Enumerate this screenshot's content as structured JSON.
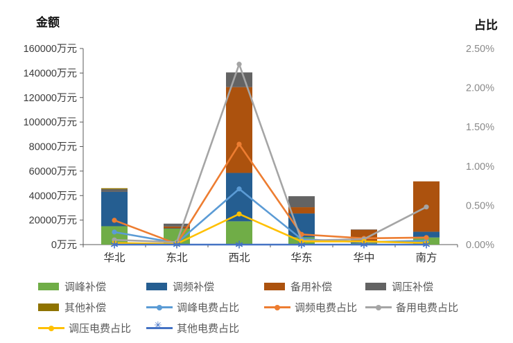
{
  "chart_data": {
    "type": "combo-stacked-bar-line",
    "categories": [
      "华北",
      "东北",
      "西北",
      "华东",
      "华中",
      "南方"
    ],
    "left_axis": {
      "title": "金额",
      "min": 0,
      "max": 160000,
      "step": 20000,
      "suffix": "万元",
      "ticks": [
        "0万元",
        "20000万元",
        "40000万元",
        "60000万元",
        "80000万元",
        "100000万元",
        "120000万元",
        "140000万元",
        "160000万元"
      ]
    },
    "right_axis": {
      "title": "占比",
      "min": 0,
      "max": 2.5,
      "step": 0.5,
      "ticks": [
        "0.00%",
        "0.50%",
        "1.00%",
        "1.50%",
        "2.00%",
        "2.50%"
      ]
    },
    "bar_series": [
      {
        "name": "调峰补偿",
        "color": "#70AD47",
        "values": [
          15000,
          13000,
          19000,
          6000,
          1100,
          5800
        ]
      },
      {
        "name": "调频补偿",
        "color": "#255E91",
        "values": [
          28000,
          300,
          39500,
          19400,
          1200,
          4700
        ]
      },
      {
        "name": "备用补偿",
        "color": "#AC520E",
        "values": [
          0,
          1500,
          70000,
          5100,
          9800,
          41100
        ]
      },
      {
        "name": "调压补偿",
        "color": "#636363",
        "values": [
          2200,
          2300,
          12000,
          9000,
          300,
          0
        ]
      },
      {
        "name": "其他补偿",
        "color": "#8F7300",
        "values": [
          800,
          0,
          0,
          0,
          0,
          0
        ]
      }
    ],
    "line_series": [
      {
        "name": "调峰电费占比",
        "color": "#5B9BD5",
        "marker": "dot",
        "values": [
          0.16,
          0.02,
          0.71,
          0.07,
          0.03,
          0.05
        ]
      },
      {
        "name": "调频电费占比",
        "color": "#ED7D31",
        "marker": "dot",
        "values": [
          0.31,
          0.01,
          1.28,
          0.13,
          0.08,
          0.09
        ]
      },
      {
        "name": "备用电费占比",
        "color": "#A5A5A5",
        "marker": "dot",
        "values": [
          0.06,
          0.03,
          2.3,
          0.05,
          0.07,
          0.48
        ]
      },
      {
        "name": "调压电费占比",
        "color": "#FFC000",
        "marker": "dot",
        "values": [
          0.02,
          0.01,
          0.39,
          0.04,
          0.04,
          0.02
        ]
      },
      {
        "name": "其他电费占比",
        "color": "#4472C4",
        "marker": "asterisk",
        "values": [
          0.0,
          0.0,
          0.0,
          0.0,
          0.0,
          0.0
        ]
      }
    ],
    "legend_order": [
      "调峰补偿",
      "调频补偿",
      "备用补偿",
      "调压补偿",
      "其他补偿",
      "调峰电费占比",
      "调频电费占比",
      "备用电费占比",
      "调压电费占比",
      "其他电费占比"
    ],
    "grid": false,
    "legend_position": "bottom"
  }
}
